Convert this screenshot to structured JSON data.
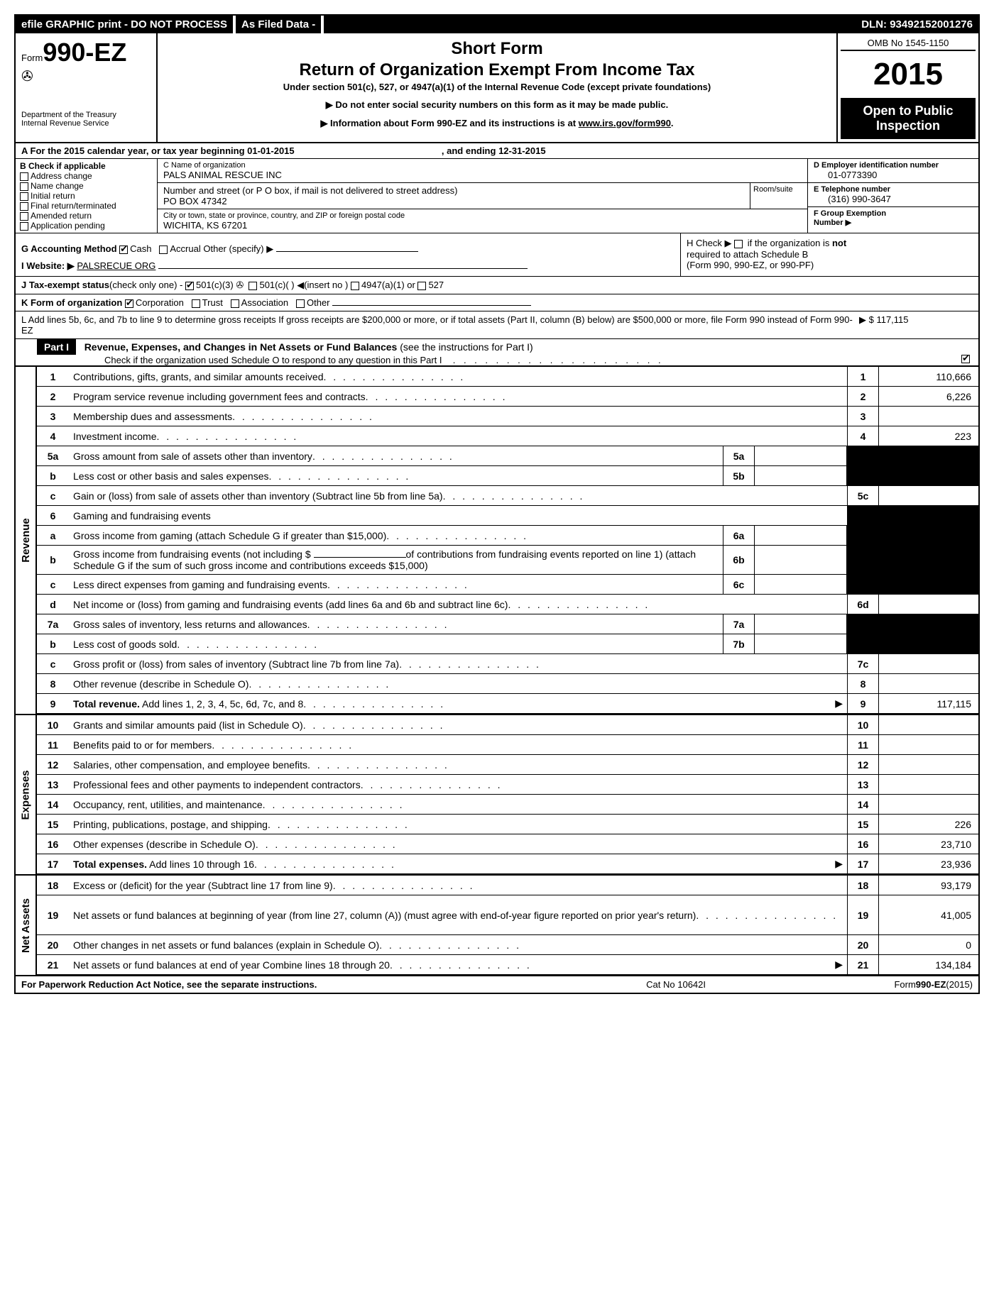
{
  "topbar": {
    "left": "efile GRAPHIC print - DO NOT PROCESS",
    "mid": "As Filed Data -",
    "dln": "DLN: 93492152001276"
  },
  "header": {
    "form_prefix": "Form",
    "form_number": "990-EZ",
    "dept1": "Department of the Treasury",
    "dept2": "Internal Revenue Service",
    "title1": "Short Form",
    "title2": "Return of Organization Exempt From Income Tax",
    "subtitle": "Under section 501(c), 527, or 4947(a)(1) of the Internal Revenue Code (except private foundations)",
    "notice1": "▶ Do not enter social security numbers on this form as it may be made public.",
    "notice2": "▶ Information about Form 990-EZ and its instructions is at ",
    "notice2_link": "www.irs.gov/form990",
    "omb": "OMB No  1545-1150",
    "year": "2015",
    "open1": "Open to Public",
    "open2": "Inspection"
  },
  "rowA": {
    "text_prefix": "A  For the 2015 calendar year, or tax year beginning ",
    "begin": "01-01-2015",
    "mid": " , and ending ",
    "end": "12-31-2015"
  },
  "colB": {
    "header": "B  Check if applicable",
    "opts": [
      "Address change",
      "Name change",
      "Initial return",
      "Final return/terminated",
      "Amended return",
      "Application pending"
    ]
  },
  "colC": {
    "name_lbl": "C Name of organization",
    "name_val": "PALS ANIMAL RESCUE INC",
    "street_lbl": "Number and street (or P  O  box, if mail is not delivered to street address)",
    "room_lbl": "Room/suite",
    "street_val": "PO BOX 47342",
    "city_lbl": "City or town, state or province, country, and ZIP or foreign postal code",
    "city_val": "WICHITA, KS  67201"
  },
  "colDEF": {
    "d_lbl": "D Employer identification number",
    "d_val": "01-0773390",
    "e_lbl": "E Telephone number",
    "e_val": "(316) 990-3647",
    "f_lbl": "F Group Exemption\n    Number    ▶"
  },
  "rowG": {
    "label": "G Accounting Method ",
    "cash": "Cash",
    "accrual": "Accrual",
    "other": "  Other (specify) ▶",
    "h_text1": "H  Check ▶ ",
    "h_text2": " if the organization is ",
    "h_not": "not",
    "h_text3": "required to attach Schedule B",
    "h_text4": "(Form 990, 990-EZ, or 990-PF)"
  },
  "rowI": {
    "label": "I Website: ▶ ",
    "val": "PALSRECUE ORG"
  },
  "rowJ": {
    "label": "J Tax-exempt status",
    "rest": "(check only one) -",
    "opt1": "501(c)(3)",
    "opt2": "501(c)(  ) ◀(insert no )",
    "opt3": "4947(a)(1) or",
    "opt4": "527"
  },
  "rowK": {
    "label": "K Form of organization  ",
    "opts": [
      "Corporation",
      "Trust",
      "Association",
      "Other"
    ]
  },
  "rowL": {
    "text": "L Add lines 5b, 6c, and 7b to line 9 to determine gross receipts  If gross receipts are $200,000 or more, or if total assets (Part II, column (B) below) are $500,000 or more, file Form 990 instead of Form 990-EZ",
    "amt": "▶ $ 117,115"
  },
  "partI": {
    "label": "Part I",
    "title": "Revenue, Expenses, and Changes in Net Assets or Fund Balances ",
    "paren": "(see the instructions for Part I)",
    "sub": "Check if the organization used Schedule O to respond to any question in this Part I"
  },
  "sections": {
    "revenue": "Revenue",
    "expenses": "Expenses",
    "netassets": "Net Assets"
  },
  "lines": {
    "l1": {
      "n": "1",
      "d": "Contributions, gifts, grants, and similar amounts received",
      "en": "1",
      "ev": "110,666"
    },
    "l2": {
      "n": "2",
      "d": "Program service revenue including government fees and contracts",
      "en": "2",
      "ev": "6,226"
    },
    "l3": {
      "n": "3",
      "d": "Membership dues and assessments",
      "en": "3",
      "ev": ""
    },
    "l4": {
      "n": "4",
      "d": "Investment income",
      "en": "4",
      "ev": "223"
    },
    "l5a": {
      "n": "5a",
      "d": "Gross amount from sale of assets other than inventory",
      "sn": "5a",
      "sv": ""
    },
    "l5b": {
      "n": "b",
      "d": "Less  cost or other basis and sales expenses",
      "sn": "5b",
      "sv": ""
    },
    "l5c": {
      "n": "c",
      "d": "Gain or (loss) from sale of assets other than inventory (Subtract line 5b from line 5a)",
      "en": "5c",
      "ev": ""
    },
    "l6": {
      "n": "6",
      "d": "Gaming and fundraising events"
    },
    "l6a": {
      "n": "a",
      "d": "Gross income from gaming (attach Schedule G if greater than $15,000)",
      "sn": "6a",
      "sv": ""
    },
    "l6b": {
      "n": "b",
      "d1": "Gross income from fundraising events (not including $ ",
      "d2": "of contributions from fundraising events reported on line 1) (attach Schedule G if the sum of such gross income and contributions exceeds $15,000)",
      "sn": "6b",
      "sv": ""
    },
    "l6c": {
      "n": "c",
      "d": "Less  direct expenses from gaming and fundraising events",
      "sn": "6c",
      "sv": ""
    },
    "l6d": {
      "n": "d",
      "d": "Net income or (loss) from gaming and fundraising events (add lines 6a and 6b and subtract line 6c)",
      "en": "6d",
      "ev": ""
    },
    "l7a": {
      "n": "7a",
      "d": "Gross sales of inventory, less returns and allowances",
      "sn": "7a",
      "sv": ""
    },
    "l7b": {
      "n": "b",
      "d": "Less  cost of goods sold",
      "sn": "7b",
      "sv": ""
    },
    "l7c": {
      "n": "c",
      "d": "Gross profit or (loss) from sales of inventory (Subtract line 7b from line 7a)",
      "en": "7c",
      "ev": ""
    },
    "l8": {
      "n": "8",
      "d": "Other revenue (describe in Schedule O)",
      "en": "8",
      "ev": ""
    },
    "l9": {
      "n": "9",
      "d": "Total revenue. Add lines 1, 2, 3, 4, 5c, 6d, 7c, and 8",
      "en": "9",
      "ev": "117,115",
      "bold": true,
      "arrow": true
    },
    "l10": {
      "n": "10",
      "d": "Grants and similar amounts paid (list in Schedule O)",
      "en": "10",
      "ev": ""
    },
    "l11": {
      "n": "11",
      "d": "Benefits paid to or for members",
      "en": "11",
      "ev": ""
    },
    "l12": {
      "n": "12",
      "d": "Salaries, other compensation, and employee benefits",
      "en": "12",
      "ev": ""
    },
    "l13": {
      "n": "13",
      "d": "Professional fees and other payments to independent contractors",
      "en": "13",
      "ev": ""
    },
    "l14": {
      "n": "14",
      "d": "Occupancy, rent, utilities, and maintenance",
      "en": "14",
      "ev": ""
    },
    "l15": {
      "n": "15",
      "d": "Printing, publications, postage, and shipping",
      "en": "15",
      "ev": "226"
    },
    "l16": {
      "n": "16",
      "d": "Other expenses (describe in Schedule O)",
      "en": "16",
      "ev": "23,710"
    },
    "l17": {
      "n": "17",
      "d": "Total expenses. Add lines 10 through 16",
      "en": "17",
      "ev": "23,936",
      "bold": true,
      "arrow": true
    },
    "l18": {
      "n": "18",
      "d": "Excess or (deficit) for the year (Subtract line 17 from line 9)",
      "en": "18",
      "ev": "93,179"
    },
    "l19": {
      "n": "19",
      "d": "Net assets or fund balances at beginning of year (from line 27, column (A)) (must agree with end-of-year figure reported on prior year's return)",
      "en": "19",
      "ev": "41,005"
    },
    "l20": {
      "n": "20",
      "d": "Other changes in net assets or fund balances (explain in Schedule O)",
      "en": "20",
      "ev": "0"
    },
    "l21": {
      "n": "21",
      "d": "Net assets or fund balances at end of year  Combine lines 18 through 20",
      "en": "21",
      "ev": "134,184",
      "arrow": true
    }
  },
  "footer": {
    "left": "For Paperwork Reduction Act Notice, see the separate instructions.",
    "center": "Cat No  10642I",
    "right_form": "990-EZ",
    "right_year": "(2015)"
  }
}
